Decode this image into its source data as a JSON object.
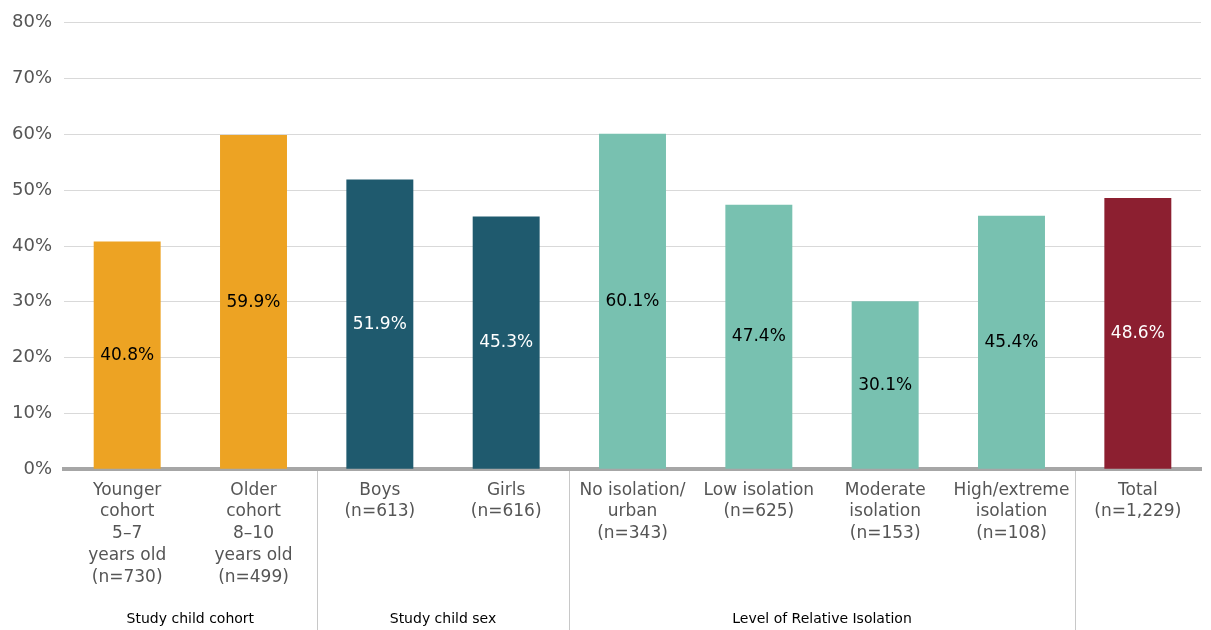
{
  "chart_data": {
    "type": "bar",
    "categories": [
      "Younger\ncohort\n5–7\nyears old\n(n=730)",
      "Older\ncohort\n8–10\nyears old\n(n=499)",
      "Boys\n(n=613)",
      "Girls\n(n=616)",
      "No isolation/\nurban\n(n=343)",
      "Low isolation\n(n=625)",
      "Moderate\nisolation\n(n=153)",
      "High/extreme\nisolation\n(n=108)",
      "Total\n(n=1,229)"
    ],
    "values": [
      40.8,
      59.9,
      51.9,
      45.3,
      60.1,
      47.4,
      30.1,
      45.4,
      48.6
    ],
    "colors": [
      "#eda323",
      "#eda323",
      "#1f5a6e",
      "#1f5a6e",
      "#78c1b0",
      "#78c1b0",
      "#78c1b0",
      "#78c1b0",
      "#8c1f30"
    ],
    "value_labels": [
      "40.8%",
      "59.9%",
      "51.9%",
      "45.3%",
      "60.1%",
      "47.4%",
      "30.1%",
      "45.4%",
      "48.6%"
    ],
    "ylim": [
      0,
      80
    ],
    "yticks": [
      {
        "value": 0,
        "label": "0%"
      },
      {
        "value": 10,
        "label": "10%"
      },
      {
        "value": 20,
        "label": "20%"
      },
      {
        "value": 30,
        "label": "30%"
      },
      {
        "value": 40,
        "label": "40%"
      },
      {
        "value": 50,
        "label": "50%"
      },
      {
        "value": 60,
        "label": "60%"
      },
      {
        "value": 70,
        "label": "70%"
      },
      {
        "value": 80,
        "label": "80%"
      }
    ],
    "grid": "y",
    "legend": false,
    "annotations": [
      "Study child cohort",
      "Study child sex",
      "Level of Relative Isolation"
    ]
  }
}
